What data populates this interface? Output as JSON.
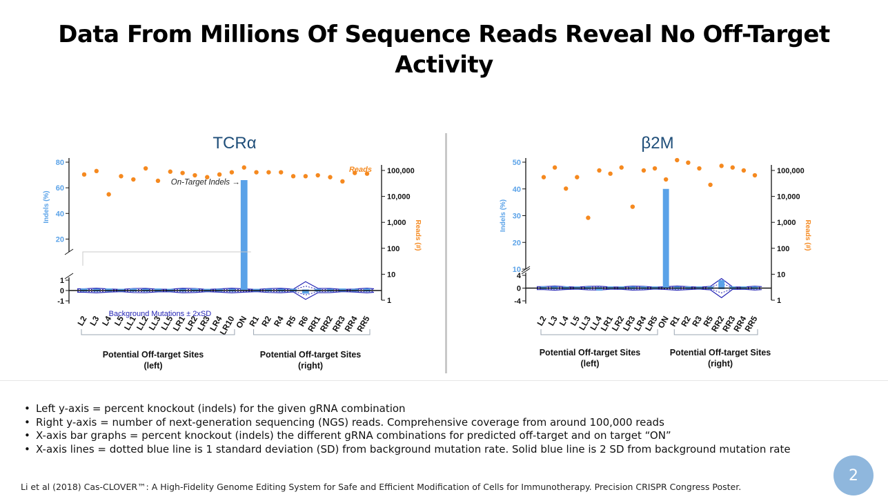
{
  "slide": {
    "title_line1": "Data From Millions Of Sequence Reads Reveal No Off-Target",
    "title_line2": "Activity",
    "page_number": "2",
    "citation": "Li et al (2018) Cas-CLOVER™: A High-Fidelity Genome Editing System for Safe and Efficient Modification of Cells for Immunotherapy. Precision CRISPR Congress Poster."
  },
  "bullets": [
    "Left y-axis = percent knockout (indels) for the given gRNA combination",
    "Right y-axis = number of next-generation sequencing (NGS) reads. Comprehensive coverage from around 100,000 reads",
    "X-axis bar graphs = percent knockout (indels) the different gRNA combinations for predicted off-target and on target “ON”",
    "X-axis lines = dotted blue line is 1 standard deviation (SD) from background mutation rate. Solid blue line is 2 SD from background mutation rate"
  ],
  "colors": {
    "bar": "#5aa2e8",
    "reads": "#f5891f",
    "band": "#2323b4",
    "axis": "#111111",
    "badge": "#8fb7dd"
  },
  "chart_data": [
    {
      "type": "bar",
      "title": "TCRα",
      "ylabel": "Indels (%)",
      "ylabel_right": "Reads (#)",
      "reads_label": "Reads",
      "yticks_upper": [
        "20",
        "40",
        "60",
        "80"
      ],
      "yticks_lower": [
        "-1",
        "0",
        "1"
      ],
      "ylim_upper": [
        10,
        80
      ],
      "ylim_lower": [
        -1,
        1
      ],
      "y2ticks": [
        "1",
        "10",
        "100",
        "1,000",
        "10,000",
        "100,000"
      ],
      "y2_scale": "log",
      "categories": [
        "L2",
        "L3",
        "L4",
        "L5",
        "LL1",
        "LL2",
        "LL3",
        "LL5",
        "LR1",
        "LR2",
        "LR3",
        "LR4",
        "LR10",
        "ON",
        "R1",
        "R2",
        "R4",
        "R5",
        "R6",
        "RR1",
        "RR2",
        "RR3",
        "RR4",
        "RR5"
      ],
      "series": [
        {
          "name": "Indels (%)",
          "values": [
            0.2,
            0.1,
            0.2,
            0.1,
            0.2,
            0.1,
            0.2,
            0.1,
            0.1,
            0.2,
            0.1,
            0.1,
            0.1,
            66,
            0.1,
            0.1,
            0.1,
            0.1,
            -0.3,
            0.1,
            0.1,
            0.2,
            0.1,
            0.2
          ]
        },
        {
          "name": "Reads",
          "axis": "right",
          "values": [
            70000,
            95000,
            12000,
            60000,
            45000,
            120000,
            40000,
            90000,
            80000,
            65000,
            55000,
            70000,
            85000,
            130000,
            85000,
            85000,
            85000,
            60000,
            60000,
            65000,
            55000,
            38000,
            80000,
            75000
          ]
        }
      ],
      "annotations": {
        "on_target": "On-Target Indels →",
        "background": "Background Mutations ± 2xSD"
      },
      "groups": [
        {
          "line1": "Potential Off-target Sites",
          "line2": "(left)"
        },
        {
          "line1": "Potential Off-target Sites",
          "line2": "(right)"
        }
      ]
    },
    {
      "type": "bar",
      "title": "β2M",
      "ylabel": "Indels (%)",
      "ylabel_right": "Reads (#)",
      "yticks_upper": [
        "10",
        "20",
        "30",
        "40",
        "50"
      ],
      "yticks_lower": [
        "-4",
        "0",
        "4"
      ],
      "ylim_upper": [
        10,
        50
      ],
      "ylim_lower": [
        -4,
        4
      ],
      "y2ticks": [
        "1",
        "10",
        "100",
        "1,000",
        "10,000",
        "100,000"
      ],
      "y2_scale": "log",
      "categories": [
        "L2",
        "L3",
        "L4",
        "L5",
        "LL3",
        "LL4",
        "LR1",
        "LR2",
        "LR3",
        "LR4",
        "LR5",
        "ON",
        "R1",
        "R2",
        "R3",
        "R5",
        "RR2",
        "RR3",
        "RR4",
        "RR5"
      ],
      "series": [
        {
          "name": "Indels (%)",
          "values": [
            0.5,
            0.5,
            0.3,
            0.5,
            0.5,
            -0.8,
            0.5,
            0.3,
            0.5,
            0.3,
            0.5,
            40,
            0.5,
            0.5,
            0.5,
            0.3,
            2.5,
            0.5,
            0.5,
            0.5
          ]
        },
        {
          "name": "Reads",
          "axis": "right",
          "values": [
            55000,
            130000,
            20000,
            55000,
            1500,
            100000,
            75000,
            130000,
            4000,
            100000,
            120000,
            45000,
            250000,
            200000,
            120000,
            28000,
            150000,
            130000,
            100000,
            65000
          ]
        }
      ],
      "groups": [
        {
          "line1": "Potential Off-target Sites",
          "line2": "(left)"
        },
        {
          "line1": "Potential Off-target Sites",
          "line2": "(right)"
        }
      ]
    }
  ]
}
